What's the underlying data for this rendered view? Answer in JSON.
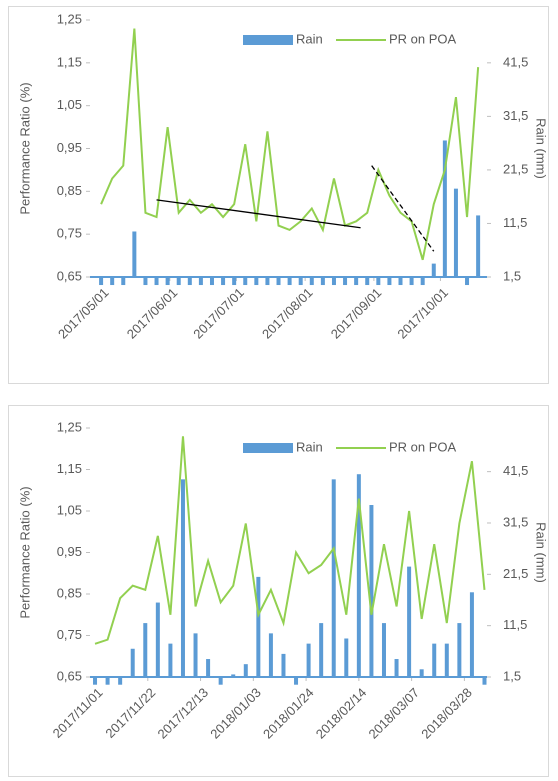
{
  "chart_data": [
    {
      "type": "bar-line",
      "y_label": "Performance Ratio (%)",
      "y2_label": "Rain (mm)",
      "x": [
        "2017/05/01",
        "2017/05/06",
        "2017/05/11",
        "2017/05/16",
        "2017/05/21",
        "2017/05/26",
        "2017/05/31",
        "2017/06/05",
        "2017/06/10",
        "2017/06/15",
        "2017/06/20",
        "2017/06/25",
        "2017/06/30",
        "2017/07/05",
        "2017/07/10",
        "2017/07/15",
        "2017/07/20",
        "2017/07/25",
        "2017/07/30",
        "2017/08/04",
        "2017/08/09",
        "2017/08/14",
        "2017/08/19",
        "2017/08/24",
        "2017/08/29",
        "2017/09/03",
        "2017/09/08",
        "2017/09/13",
        "2017/09/18",
        "2017/09/23",
        "2017/09/28",
        "2017/10/03",
        "2017/10/08",
        "2017/10/13",
        "2017/10/18"
      ],
      "series": [
        {
          "name": "Rain",
          "color": "#5b9bd5",
          "axis": "y2",
          "values": [
            0,
            0,
            0,
            10,
            0,
            0,
            0,
            0,
            0,
            0,
            0,
            0,
            0,
            0,
            0,
            0,
            0,
            0,
            0,
            0,
            0,
            0,
            0,
            0,
            0,
            0,
            0,
            0,
            0,
            0,
            4,
            27,
            18,
            0,
            13
          ]
        },
        {
          "name": "PR on POA",
          "color": "#92d050",
          "values": [
            0.82,
            0.88,
            0.91,
            1.23,
            0.8,
            0.79,
            1.0,
            0.8,
            0.83,
            0.8,
            0.82,
            0.79,
            0.82,
            0.96,
            0.78,
            0.99,
            0.77,
            0.76,
            0.78,
            0.81,
            0.76,
            0.88,
            0.77,
            0.78,
            0.8,
            0.9,
            0.84,
            0.8,
            0.78,
            0.69,
            0.82,
            0.9,
            1.07,
            0.79,
            1.14
          ]
        }
      ],
      "trend_lines": [
        {
          "x": [
            "2017/05/26",
            "2017/08/26"
          ],
          "y": [
            0.83,
            0.765
          ],
          "style": "solid"
        },
        {
          "x": [
            "2017/08/31",
            "2017/09/28"
          ],
          "y": [
            0.91,
            0.71
          ],
          "style": "dashed"
        }
      ],
      "xlim": [
        "2017/04/26",
        "2017/10/22"
      ],
      "xticks": [
        "2017/05/01",
        "2017/06/01",
        "2017/07/01",
        "2017/08/01",
        "2017/09/01",
        "2017/10/01"
      ],
      "ylim": [
        0.65,
        1.25
      ],
      "yticks": [
        {
          "value": 0.65,
          "label": "0,65"
        },
        {
          "value": 0.75,
          "label": "0,75"
        },
        {
          "value": 0.85,
          "label": "0,85"
        },
        {
          "value": 0.95,
          "label": "0,95"
        },
        {
          "value": 1.05,
          "label": "1,05"
        },
        {
          "value": 1.15,
          "label": "1,15"
        },
        {
          "value": 1.25,
          "label": "1,25"
        }
      ],
      "y2lim": [
        1.5,
        49.5
      ],
      "y2ticks": [
        {
          "value": 1.5,
          "label": "1,5"
        },
        {
          "value": 11.5,
          "label": "11,5"
        },
        {
          "value": 21.5,
          "label": "21,5"
        },
        {
          "value": 31.5,
          "label": "31,5"
        },
        {
          "value": 41.5,
          "label": "41,5"
        }
      ]
    },
    {
      "type": "bar-line",
      "y_label": "Performance Ratio (%)",
      "y2_label": "Rain (mm)",
      "x": [
        "2017/11/01",
        "2017/11/06",
        "2017/11/11",
        "2017/11/16",
        "2017/11/21",
        "2017/11/26",
        "2017/12/01",
        "2017/12/06",
        "2017/12/11",
        "2017/12/16",
        "2017/12/21",
        "2017/12/26",
        "2017/12/31",
        "2018/01/05",
        "2018/01/10",
        "2018/01/15",
        "2018/01/20",
        "2018/01/25",
        "2018/01/30",
        "2018/02/04",
        "2018/02/09",
        "2018/02/14",
        "2018/02/19",
        "2018/02/24",
        "2018/03/01",
        "2018/03/06",
        "2018/03/11",
        "2018/03/16",
        "2018/03/21",
        "2018/03/26",
        "2018/03/31",
        "2018/04/05"
      ],
      "series": [
        {
          "name": "Rain",
          "color": "#5b9bd5",
          "axis": "y2",
          "values": [
            0,
            0,
            0,
            7,
            12,
            16,
            8,
            40,
            10,
            5,
            0,
            2,
            4,
            21,
            10,
            6,
            0,
            8,
            12,
            40,
            9,
            41,
            35,
            12,
            5,
            23,
            3,
            8,
            8,
            12,
            18,
            0
          ]
        },
        {
          "name": "PR on POA",
          "color": "#92d050",
          "values": [
            0.73,
            0.74,
            0.84,
            0.87,
            0.86,
            0.99,
            0.8,
            1.23,
            0.82,
            0.93,
            0.83,
            0.87,
            1.02,
            0.8,
            0.86,
            0.78,
            0.95,
            0.9,
            0.92,
            0.96,
            0.8,
            1.08,
            0.8,
            0.97,
            0.82,
            1.05,
            0.79,
            0.97,
            0.78,
            1.02,
            1.17,
            0.86
          ]
        }
      ],
      "xlim": [
        "2017/10/30",
        "2018/04/06"
      ],
      "xticks": [
        "2017/11/01",
        "2017/11/22",
        "2017/12/13",
        "2018/01/03",
        "2018/01/24",
        "2018/02/14",
        "2018/03/07",
        "2018/03/28"
      ],
      "ylim": [
        0.65,
        1.25
      ],
      "yticks": [
        {
          "value": 0.65,
          "label": "0,65"
        },
        {
          "value": 0.75,
          "label": "0,75"
        },
        {
          "value": 0.85,
          "label": "0,85"
        },
        {
          "value": 0.95,
          "label": "0,95"
        },
        {
          "value": 1.05,
          "label": "1,05"
        },
        {
          "value": 1.15,
          "label": "1,15"
        },
        {
          "value": 1.25,
          "label": "1,25"
        }
      ],
      "y2lim": [
        1.5,
        50
      ],
      "y2ticks": [
        {
          "value": 1.5,
          "label": "1,5"
        },
        {
          "value": 11.5,
          "label": "11,5"
        },
        {
          "value": 21.5,
          "label": "21,5"
        },
        {
          "value": 31.5,
          "label": "31,5"
        },
        {
          "value": 41.5,
          "label": "41,5"
        }
      ]
    }
  ]
}
